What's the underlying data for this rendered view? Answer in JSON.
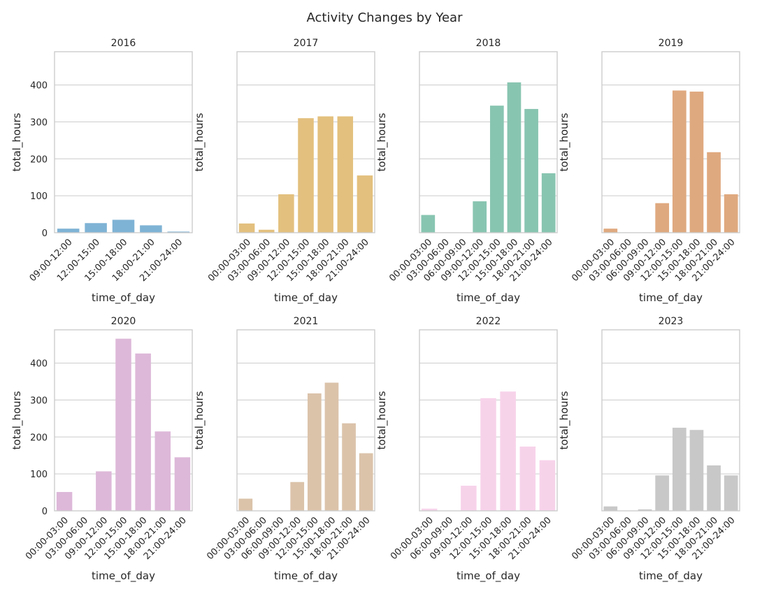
{
  "figure": {
    "title": "Activity Changes by Year"
  },
  "chart_data": [
    {
      "type": "bar",
      "title": "2016",
      "xlabel": "time_of_day",
      "ylabel": "total_hours",
      "ylim": [
        0,
        490
      ],
      "yticks": [
        0,
        100,
        200,
        300,
        400
      ],
      "show_ytick_labels": true,
      "color": "#7fb3d5",
      "grid": "horizontal",
      "categories": [
        "09:00-12:00",
        "12:00-15:00",
        "15:00-18:00",
        "18:00-21:00",
        "21:00-24:00"
      ],
      "values": [
        11,
        26,
        35,
        20,
        3
      ]
    },
    {
      "type": "bar",
      "title": "2017",
      "xlabel": "time_of_day",
      "ylabel": "total_hours",
      "ylim": [
        0,
        490
      ],
      "yticks": [
        0,
        100,
        200,
        300,
        400
      ],
      "show_ytick_labels": false,
      "color": "#e3c07e",
      "grid": "horizontal",
      "categories": [
        "00:00-03:00",
        "03:00-06:00",
        "09:00-12:00",
        "12:00-15:00",
        "15:00-18:00",
        "18:00-21:00",
        "21:00-24:00"
      ],
      "values": [
        25,
        8,
        104,
        310,
        315,
        315,
        155
      ]
    },
    {
      "type": "bar",
      "title": "2018",
      "xlabel": "time_of_day",
      "ylabel": "total_hours",
      "ylim": [
        0,
        490
      ],
      "yticks": [
        0,
        100,
        200,
        300,
        400
      ],
      "show_ytick_labels": false,
      "color": "#88c5b1",
      "grid": "horizontal",
      "categories": [
        "00:00-03:00",
        "03:00-06:00",
        "06:00-09:00",
        "09:00-12:00",
        "12:00-15:00",
        "15:00-18:00",
        "18:00-21:00",
        "21:00-24:00"
      ],
      "values": [
        48,
        0,
        0,
        85,
        344,
        407,
        335,
        161
      ]
    },
    {
      "type": "bar",
      "title": "2019",
      "xlabel": "time_of_day",
      "ylabel": "total_hours",
      "ylim": [
        0,
        490
      ],
      "yticks": [
        0,
        100,
        200,
        300,
        400
      ],
      "show_ytick_labels": false,
      "color": "#dfa97f",
      "grid": "horizontal",
      "categories": [
        "00:00-03:00",
        "03:00-06:00",
        "06:00-09:00",
        "09:00-12:00",
        "12:00-15:00",
        "15:00-18:00",
        "18:00-21:00",
        "21:00-24:00"
      ],
      "values": [
        11,
        0,
        0,
        80,
        385,
        382,
        218,
        104
      ]
    },
    {
      "type": "bar",
      "title": "2020",
      "xlabel": "time_of_day",
      "ylabel": "total_hours",
      "ylim": [
        0,
        490
      ],
      "yticks": [
        0,
        100,
        200,
        300,
        400
      ],
      "show_ytick_labels": true,
      "color": "#ddb8d9",
      "grid": "horizontal",
      "categories": [
        "00:00-03:00",
        "03:00-06:00",
        "09:00-12:00",
        "12:00-15:00",
        "15:00-18:00",
        "18:00-21:00",
        "21:00-24:00"
      ],
      "values": [
        51,
        0,
        107,
        466,
        426,
        215,
        145
      ]
    },
    {
      "type": "bar",
      "title": "2021",
      "xlabel": "time_of_day",
      "ylabel": "total_hours",
      "ylim": [
        0,
        490
      ],
      "yticks": [
        0,
        100,
        200,
        300,
        400
      ],
      "show_ytick_labels": false,
      "color": "#dbc3aa",
      "grid": "horizontal",
      "categories": [
        "00:00-03:00",
        "03:00-06:00",
        "06:00-09:00",
        "09:00-12:00",
        "12:00-15:00",
        "15:00-18:00",
        "18:00-21:00",
        "21:00-24:00"
      ],
      "values": [
        33,
        0,
        0,
        78,
        318,
        347,
        237,
        156
      ]
    },
    {
      "type": "bar",
      "title": "2022",
      "xlabel": "time_of_day",
      "ylabel": "total_hours",
      "ylim": [
        0,
        490
      ],
      "yticks": [
        0,
        100,
        200,
        300,
        400
      ],
      "show_ytick_labels": false,
      "color": "#f7d3ea",
      "grid": "horizontal",
      "categories": [
        "00:00-03:00",
        "06:00-09:00",
        "09:00-12:00",
        "12:00-15:00",
        "15:00-18:00",
        "18:00-21:00",
        "21:00-24:00"
      ],
      "values": [
        6,
        0,
        68,
        305,
        323,
        174,
        137
      ]
    },
    {
      "type": "bar",
      "title": "2023",
      "xlabel": "time_of_day",
      "ylabel": "total_hours",
      "ylim": [
        0,
        490
      ],
      "yticks": [
        0,
        100,
        200,
        300,
        400
      ],
      "show_ytick_labels": false,
      "color": "#c8c8c8",
      "grid": "horizontal",
      "categories": [
        "00:00-03:00",
        "03:00-06:00",
        "06:00-09:00",
        "09:00-12:00",
        "12:00-15:00",
        "15:00-18:00",
        "18:00-21:00",
        "21:00-24:00"
      ],
      "values": [
        12,
        0,
        4,
        96,
        225,
        219,
        123,
        96
      ]
    }
  ]
}
